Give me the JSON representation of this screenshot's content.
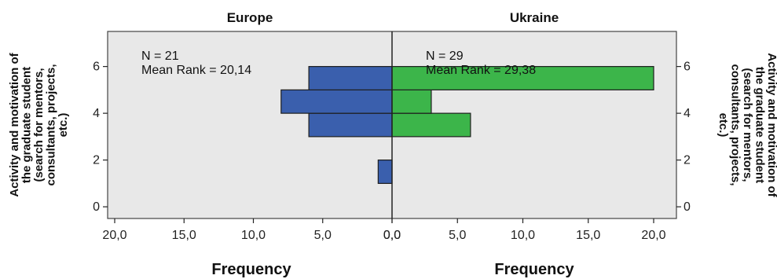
{
  "chart_data": {
    "type": "bar",
    "orientation": "horizontal",
    "panels": [
      {
        "title": "Europe",
        "xlabel": "Frequency",
        "ylabel": "Activity and motivation of the graduate student (search for mentors, consultants, projects, etc.)",
        "annotations": [
          "N = 21",
          "Mean Rank = 20,14"
        ],
        "color": "#3a5fad",
        "direction": "left",
        "bins": [
          {
            "from": 1,
            "to": 2,
            "frequency": 1
          },
          {
            "from": 2,
            "to": 3,
            "frequency": 0
          },
          {
            "from": 3,
            "to": 4,
            "frequency": 6
          },
          {
            "from": 4,
            "to": 5,
            "frequency": 8
          },
          {
            "from": 5,
            "to": 6,
            "frequency": 6
          }
        ],
        "xticks": [
          "20,0",
          "15,0",
          "10,0",
          "5,0",
          "0,0"
        ]
      },
      {
        "title": "Ukraine",
        "xlabel": "Frequency",
        "ylabel": "Activity and motivation of the graduate student (search for mentors, consultants, projects, etc.)",
        "annotations": [
          "N = 29",
          "Mean Rank = 29,38"
        ],
        "color": "#3cb54a",
        "direction": "right",
        "bins": [
          {
            "from": 1,
            "to": 2,
            "frequency": 0
          },
          {
            "from": 2,
            "to": 3,
            "frequency": 0
          },
          {
            "from": 3,
            "to": 4,
            "frequency": 6
          },
          {
            "from": 4,
            "to": 5,
            "frequency": 3
          },
          {
            "from": 5,
            "to": 6,
            "frequency": 20
          }
        ],
        "xticks": [
          "0,0",
          "5,0",
          "10,0",
          "15,0",
          "20,0"
        ]
      }
    ],
    "yticks": [
      "0",
      "2",
      "4",
      "6"
    ],
    "ylim": [
      -0.5,
      7.5
    ],
    "xlim": [
      0,
      20
    ],
    "plot_background": "#e8e8e8",
    "grid": false
  }
}
